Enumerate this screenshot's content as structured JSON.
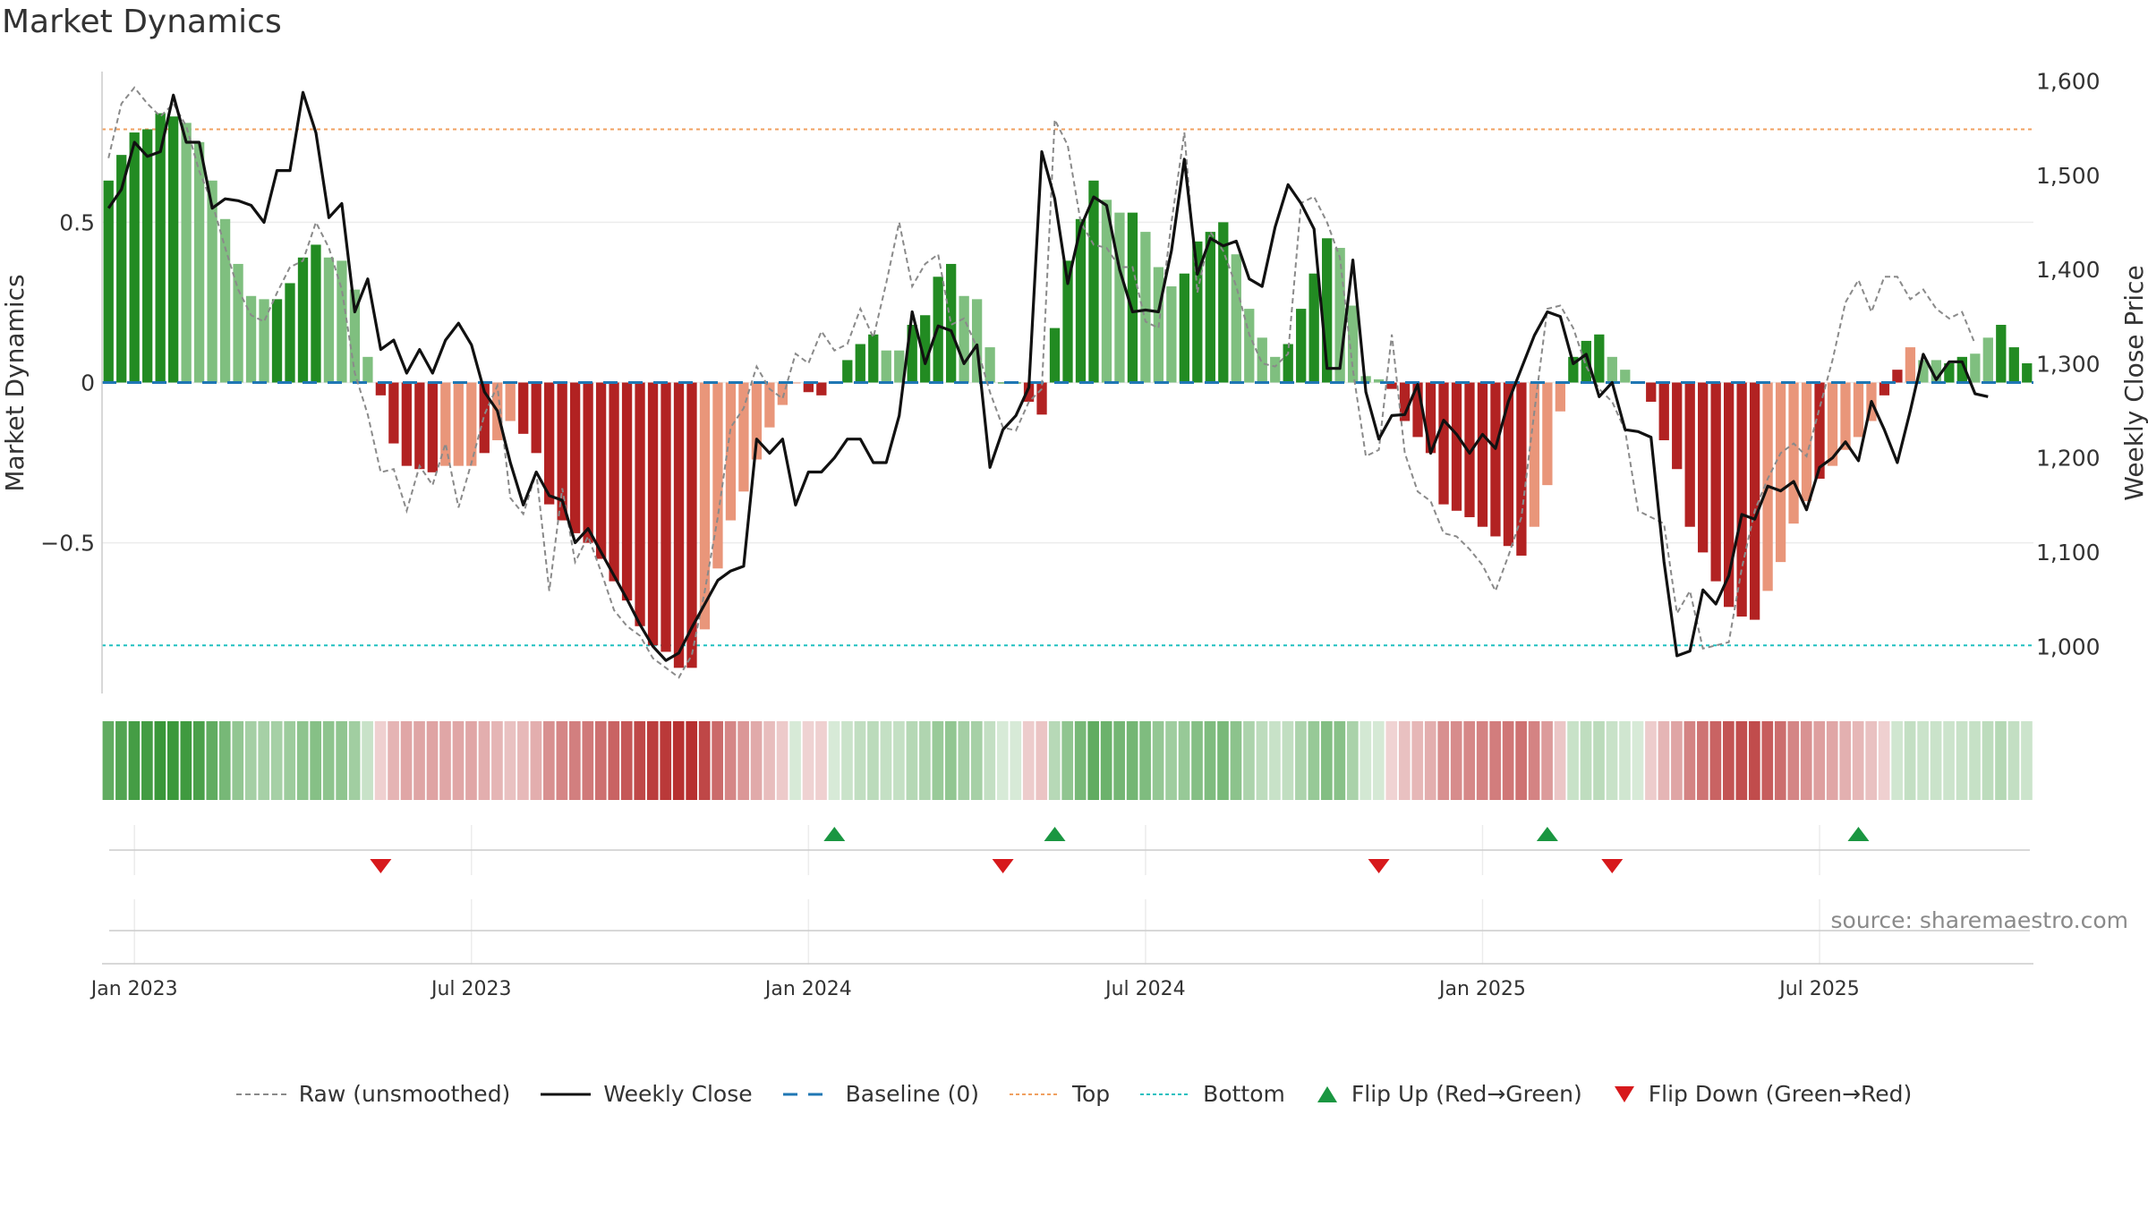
{
  "title": "Market Dynamics",
  "source": "source: sharemaestro.com",
  "colors": {
    "strong_green": "#228b22",
    "light_green": "#7fbf7f",
    "strong_red": "#b22222",
    "light_red": "#e9967a",
    "close_line": "#111111",
    "raw_line": "#8a8a8a",
    "baseline": "#1f77b4",
    "top": "#f0a060",
    "bottom": "#20c0c0",
    "flip_up": "#1a9641",
    "flip_down": "#d7191c"
  },
  "legend": [
    {
      "label": "Raw (unsmoothed)",
      "icon": "dashed-gray-line"
    },
    {
      "label": "Weekly Close",
      "icon": "solid-black-line"
    },
    {
      "label": "Baseline (0)",
      "icon": "dashed-blue-line"
    },
    {
      "label": "Top",
      "icon": "dotted-orange-line"
    },
    {
      "label": "Bottom",
      "icon": "dotted-cyan-line"
    },
    {
      "label": "Flip Up (Red→Green)",
      "icon": "triangle-up-icon"
    },
    {
      "label": "Flip Down (Green→Red)",
      "icon": "triangle-down-icon"
    }
  ],
  "chart_data": {
    "type": "bar",
    "title": "Market Dynamics",
    "ylabel": "Market Dynamics",
    "y2label": "Weekly Close Price",
    "ylim": [
      -0.97,
      0.97
    ],
    "y2lim": [
      950,
      1610
    ],
    "yticks": [
      {
        "v": 0.5,
        "label": "0.5"
      },
      {
        "v": 0,
        "label": "0"
      },
      {
        "v": -0.5,
        "label": "−0.5"
      }
    ],
    "y2ticks": [
      {
        "v": 1600,
        "label": "1,600"
      },
      {
        "v": 1500,
        "label": "1,500"
      },
      {
        "v": 1400,
        "label": "1,400"
      },
      {
        "v": 1300,
        "label": "1,300"
      },
      {
        "v": 1200,
        "label": "1,200"
      },
      {
        "v": 1100,
        "label": "1,100"
      },
      {
        "v": 1000,
        "label": "1,000"
      }
    ],
    "xticks": [
      {
        "label": "Jan 2023",
        "week": 2
      },
      {
        "label": "Jul 2023",
        "week": 28
      },
      {
        "label": "Jan 2024",
        "week": 54
      },
      {
        "label": "Jul 2024",
        "week": 80
      },
      {
        "label": "Jan 2025",
        "week": 106
      },
      {
        "label": "Jul 2025",
        "week": 132
      }
    ],
    "top_level": 0.79,
    "bottom_level": -0.82,
    "baseline": 0,
    "dynamics": [
      0.63,
      0.71,
      0.78,
      0.79,
      0.84,
      0.83,
      0.81,
      0.75,
      0.63,
      0.51,
      0.37,
      0.27,
      0.26,
      0.26,
      0.31,
      0.39,
      0.43,
      0.39,
      0.38,
      0.29,
      0.08,
      -0.04,
      -0.19,
      -0.26,
      -0.27,
      -0.28,
      -0.26,
      -0.26,
      -0.26,
      -0.22,
      -0.18,
      -0.12,
      -0.16,
      -0.22,
      -0.38,
      -0.43,
      -0.47,
      -0.5,
      -0.55,
      -0.62,
      -0.68,
      -0.76,
      -0.82,
      -0.84,
      -0.89,
      -0.89,
      -0.77,
      -0.58,
      -0.43,
      -0.34,
      -0.24,
      -0.14,
      -0.07,
      0,
      -0.03,
      -0.04,
      0,
      0.07,
      0.12,
      0.15,
      0.1,
      0.1,
      0.18,
      0.21,
      0.33,
      0.37,
      0.27,
      0.26,
      0.11,
      0,
      0,
      -0.06,
      -0.1,
      0.17,
      0.38,
      0.51,
      0.63,
      0.57,
      0.53,
      0.53,
      0.47,
      0.36,
      0.3,
      0.34,
      0.44,
      0.47,
      0.5,
      0.4,
      0.23,
      0.14,
      0.08,
      0.12,
      0.23,
      0.34,
      0.45,
      0.42,
      0.24,
      0.02,
      0.01,
      -0.02,
      -0.12,
      -0.17,
      -0.22,
      -0.38,
      -0.4,
      -0.42,
      -0.45,
      -0.48,
      -0.51,
      -0.54,
      -0.45,
      -0.32,
      -0.09,
      0.08,
      0.13,
      0.15,
      0.08,
      0.04,
      0,
      -0.06,
      -0.18,
      -0.27,
      -0.45,
      -0.53,
      -0.62,
      -0.7,
      -0.73,
      -0.74,
      -0.65,
      -0.56,
      -0.44,
      -0.37,
      -0.3,
      -0.26,
      -0.21,
      -0.17,
      -0.12,
      -0.04,
      0.04,
      0.11,
      0.07,
      0.07,
      0.06,
      0.08,
      0.09,
      0.14,
      0.18,
      0.11,
      0.06
    ],
    "bar_colors": [
      "g",
      "g",
      "g",
      "g",
      "g",
      "g",
      "lg",
      "lg",
      "lg",
      "lg",
      "lg",
      "lg",
      "lg",
      "g",
      "g",
      "g",
      "g",
      "lg",
      "lg",
      "lg",
      "lg",
      "r",
      "r",
      "r",
      "r",
      "r",
      "lr",
      "lr",
      "lr",
      "r",
      "lr",
      "lr",
      "r",
      "r",
      "r",
      "r",
      "r",
      "r",
      "r",
      "r",
      "r",
      "r",
      "r",
      "r",
      "r",
      "r",
      "lr",
      "lr",
      "lr",
      "lr",
      "lr",
      "lr",
      "lr",
      "lr",
      "r",
      "r",
      "g",
      "g",
      "g",
      "g",
      "lg",
      "lg",
      "g",
      "g",
      "g",
      "g",
      "lg",
      "lg",
      "lg",
      "g",
      "g",
      "r",
      "r",
      "g",
      "g",
      "g",
      "g",
      "lg",
      "lg",
      "g",
      "lg",
      "lg",
      "lg",
      "g",
      "g",
      "g",
      "g",
      "lg",
      "lg",
      "lg",
      "lg",
      "g",
      "g",
      "g",
      "g",
      "lg",
      "lg",
      "lg",
      "lg",
      "r",
      "r",
      "r",
      "r",
      "r",
      "r",
      "r",
      "r",
      "r",
      "r",
      "r",
      "lr",
      "lr",
      "lr",
      "g",
      "g",
      "g",
      "lg",
      "lg",
      "lg",
      "r",
      "r",
      "r",
      "r",
      "r",
      "r",
      "r",
      "r",
      "r",
      "lr",
      "lr",
      "lr",
      "lr",
      "r",
      "lr",
      "lr",
      "lr",
      "lr",
      "r",
      "r",
      "lr",
      "lg",
      "lg",
      "g",
      "g",
      "lg",
      "lg",
      "g",
      "g",
      "g",
      "g",
      "lg",
      "lg",
      "g"
    ],
    "raw": [
      0.7,
      0.87,
      0.92,
      0.87,
      0.83,
      0.87,
      0.8,
      0.66,
      0.56,
      0.42,
      0.29,
      0.21,
      0.19,
      0.28,
      0.36,
      0.38,
      0.5,
      0.42,
      0.29,
      0.03,
      -0.1,
      -0.28,
      -0.27,
      -0.4,
      -0.26,
      -0.32,
      -0.19,
      -0.39,
      -0.25,
      -0.1,
      -0.01,
      -0.36,
      -0.41,
      -0.28,
      -0.65,
      -0.33,
      -0.56,
      -0.48,
      -0.59,
      -0.71,
      -0.76,
      -0.79,
      -0.86,
      -0.89,
      -0.92,
      -0.85,
      -0.65,
      -0.42,
      -0.14,
      -0.08,
      0.05,
      -0.02,
      -0.05,
      0.09,
      0.06,
      0.16,
      0.1,
      0.12,
      0.23,
      0.14,
      0.31,
      0.5,
      0.3,
      0.37,
      0.4,
      0.18,
      0.2,
      0.11,
      -0.03,
      -0.14,
      -0.15,
      -0.06,
      -0.02,
      0.82,
      0.74,
      0.5,
      0.43,
      0.42,
      0.36,
      0.36,
      0.19,
      0.17,
      0.5,
      0.78,
      0.28,
      0.47,
      0.41,
      0.3,
      0.15,
      0.06,
      0.05,
      0.09,
      0.56,
      0.58,
      0.5,
      0.39,
      0.04,
      -0.23,
      -0.21,
      0.15,
      -0.22,
      -0.34,
      -0.37,
      -0.47,
      -0.48,
      -0.52,
      -0.57,
      -0.65,
      -0.54,
      -0.42,
      -0.09,
      0.23,
      0.24,
      0.17,
      0.05,
      -0.02,
      -0.06,
      -0.15,
      -0.4,
      -0.42,
      -0.44,
      -0.72,
      -0.65,
      -0.83,
      -0.82,
      -0.81,
      -0.58,
      -0.4,
      -0.3,
      -0.22,
      -0.19,
      -0.23,
      -0.08,
      0.07,
      0.25,
      0.32,
      0.22,
      0.33,
      0.33,
      0.26,
      0.29,
      0.23,
      0.2,
      0.22,
      0.12
    ]
  },
  "weekly_close": [
    1465,
    1485,
    1535,
    1520,
    1525,
    1585,
    1535,
    1535,
    1465,
    1475,
    1473,
    1468,
    1450,
    1505,
    1505,
    1588,
    1545,
    1455,
    1470,
    1355,
    1390,
    1315,
    1325,
    1290,
    1315,
    1290,
    1325,
    1343,
    1320,
    1270,
    1250,
    1195,
    1150,
    1185,
    1160,
    1155,
    1110,
    1125,
    1100,
    1075,
    1050,
    1023,
    1000,
    985,
    993,
    1020,
    1045,
    1070,
    1080,
    1085,
    1220,
    1205,
    1220,
    1150,
    1185,
    1185,
    1200,
    1220,
    1220,
    1195,
    1195,
    1245,
    1355,
    1300,
    1340,
    1335,
    1300,
    1320,
    1190,
    1230,
    1245,
    1275,
    1525,
    1475,
    1385,
    1445,
    1477,
    1468,
    1400,
    1355,
    1357,
    1355,
    1420,
    1517,
    1395,
    1433,
    1425,
    1430,
    1390,
    1382,
    1445,
    1490,
    1470,
    1443,
    1295,
    1295,
    1410,
    1270,
    1220,
    1245,
    1246,
    1278,
    1205,
    1240,
    1225,
    1205,
    1225,
    1210,
    1260,
    1295,
    1330,
    1355,
    1350,
    1300,
    1310,
    1265,
    1280,
    1230,
    1228,
    1222,
    1090,
    990,
    995,
    1060,
    1045,
    1075,
    1140,
    1135,
    1170,
    1165,
    1175,
    1145,
    1190,
    1200,
    1217,
    1197,
    1260,
    1230,
    1195,
    1250,
    1310,
    1283,
    1302,
    1302,
    1268,
    1265
  ],
  "flips": [
    {
      "week": 21,
      "dir": "down"
    },
    {
      "week": 56,
      "dir": "up"
    },
    {
      "week": 69,
      "dir": "down"
    },
    {
      "week": 73,
      "dir": "up"
    },
    {
      "week": 98,
      "dir": "down"
    },
    {
      "week": 111,
      "dir": "up"
    },
    {
      "week": 116,
      "dir": "down"
    },
    {
      "week": 135,
      "dir": "up"
    }
  ]
}
